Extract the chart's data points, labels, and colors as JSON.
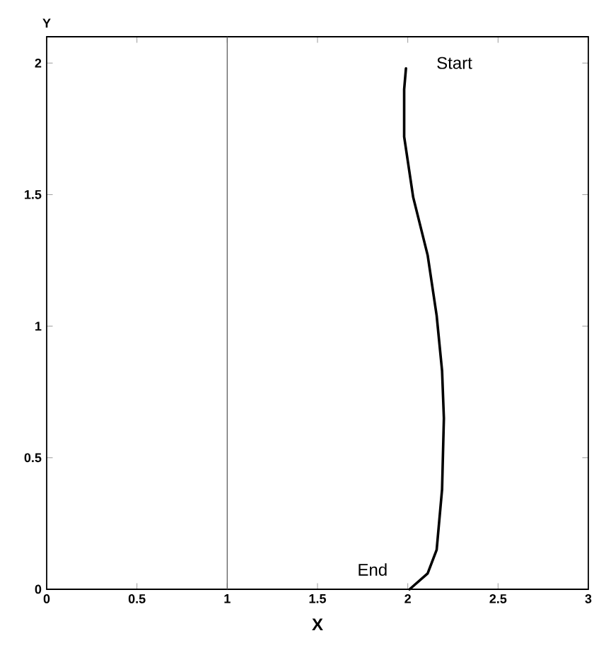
{
  "chart_data": {
    "type": "line",
    "xlabel": "X",
    "ylabel": "Y",
    "xlim": [
      0,
      3
    ],
    "ylim": [
      0,
      2.1
    ],
    "xticks": [
      0,
      0.5,
      1,
      1.5,
      2,
      2.5,
      3
    ],
    "yticks": [
      0,
      0.5,
      1,
      1.5,
      2
    ],
    "grid": false,
    "marker": "none",
    "line_style": "solid",
    "series": [
      {
        "color": "#000000",
        "x": [
          1.99,
          1.98,
          1.98,
          2.03,
          2.11,
          2.16,
          2.19,
          2.2,
          2.19,
          2.16,
          2.11,
          2.01
        ],
        "values": [
          1.98,
          1.9,
          1.72,
          1.49,
          1.27,
          1.04,
          0.83,
          0.65,
          0.38,
          0.15,
          0.06,
          0.0
        ]
      }
    ],
    "ref_lines": [
      {
        "axis": "x",
        "value": 1,
        "color": "#555555"
      }
    ],
    "annotations": [
      {
        "text": "Start",
        "x": 1.99,
        "y": 1.98
      },
      {
        "text": "End",
        "x": 2.01,
        "y": 0.0
      }
    ]
  }
}
